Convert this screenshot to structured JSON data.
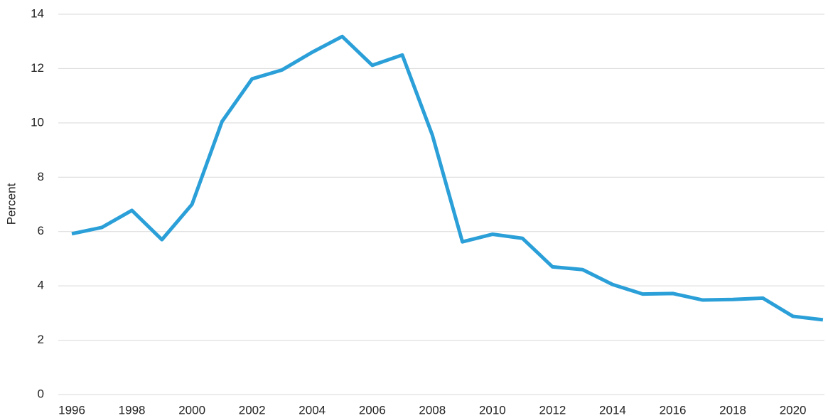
{
  "chart_data": {
    "type": "line",
    "y_label": "Percent",
    "x": [
      1996,
      1997,
      1998,
      1999,
      2000,
      2001,
      2002,
      2003,
      2004,
      2005,
      2006,
      2007,
      2008,
      2009,
      2010,
      2011,
      2012,
      2013,
      2014,
      2015,
      2016,
      2017,
      2018,
      2019,
      2020,
      2021
    ],
    "series": [
      {
        "color": "#2a9fd8",
        "values": [
          5.92,
          6.15,
          6.78,
          5.7,
          7.0,
          10.05,
          11.62,
          11.95,
          12.6,
          13.18,
          12.12,
          12.5,
          9.55,
          5.62,
          5.9,
          5.75,
          4.7,
          4.6,
          4.05,
          3.7,
          3.72,
          3.48,
          3.5,
          3.55,
          2.88,
          2.75
        ]
      }
    ],
    "xlim": [
      1995.55,
      2021.05
    ],
    "xticks": [
      1996,
      1998,
      2000,
      2002,
      2004,
      2006,
      2008,
      2010,
      2012,
      2014,
      2016,
      2018,
      2020
    ],
    "ylim": [
      0,
      14
    ],
    "yticks": [
      0,
      2,
      4,
      6,
      8,
      10,
      12,
      14
    ],
    "grid": true
  }
}
